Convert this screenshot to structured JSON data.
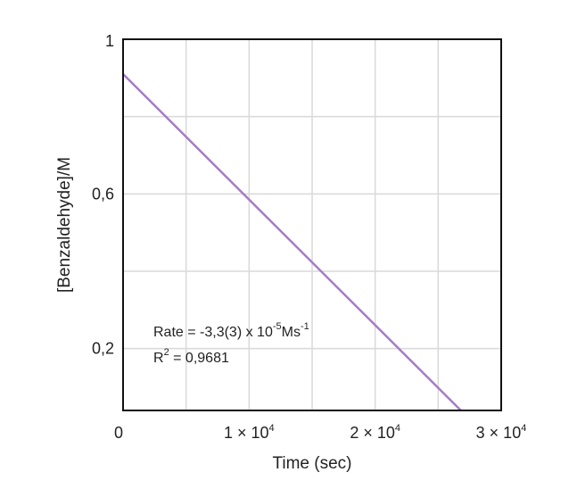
{
  "chart_data": {
    "type": "line",
    "xlabel": "Time (sec)",
    "ylabel": "[Benzaldehyde]/M",
    "xlim": [
      0,
      30000
    ],
    "ylim": [
      0.04,
      1.0
    ],
    "grid": true,
    "x_ticks": [
      {
        "value": 0,
        "mantissa": "0",
        "exponent": ""
      },
      {
        "value": 10000,
        "mantissa": "1 × 10",
        "exponent": "4"
      },
      {
        "value": 20000,
        "mantissa": "2 × 10",
        "exponent": "4"
      },
      {
        "value": 30000,
        "mantissa": "3 × 10",
        "exponent": "4"
      }
    ],
    "y_ticks": [
      {
        "value": 0.2,
        "label": "0,2"
      },
      {
        "value": 0.6,
        "label": "0,6"
      },
      {
        "value": 1.0,
        "label": "1"
      }
    ],
    "series": [
      {
        "color": "#a57cc6",
        "x": [
          0,
          26800
        ],
        "y": [
          0.91,
          0.04
        ]
      }
    ],
    "annotation": {
      "rate_prefix": "Rate = -3,3(3) x 10",
      "rate_exp": "-5",
      "rate_unit": "Ms",
      "rate_unit_exp": "-1",
      "r2_prefix": "R",
      "r2_exp": "2",
      "r2_value": " = 0,9681"
    }
  }
}
